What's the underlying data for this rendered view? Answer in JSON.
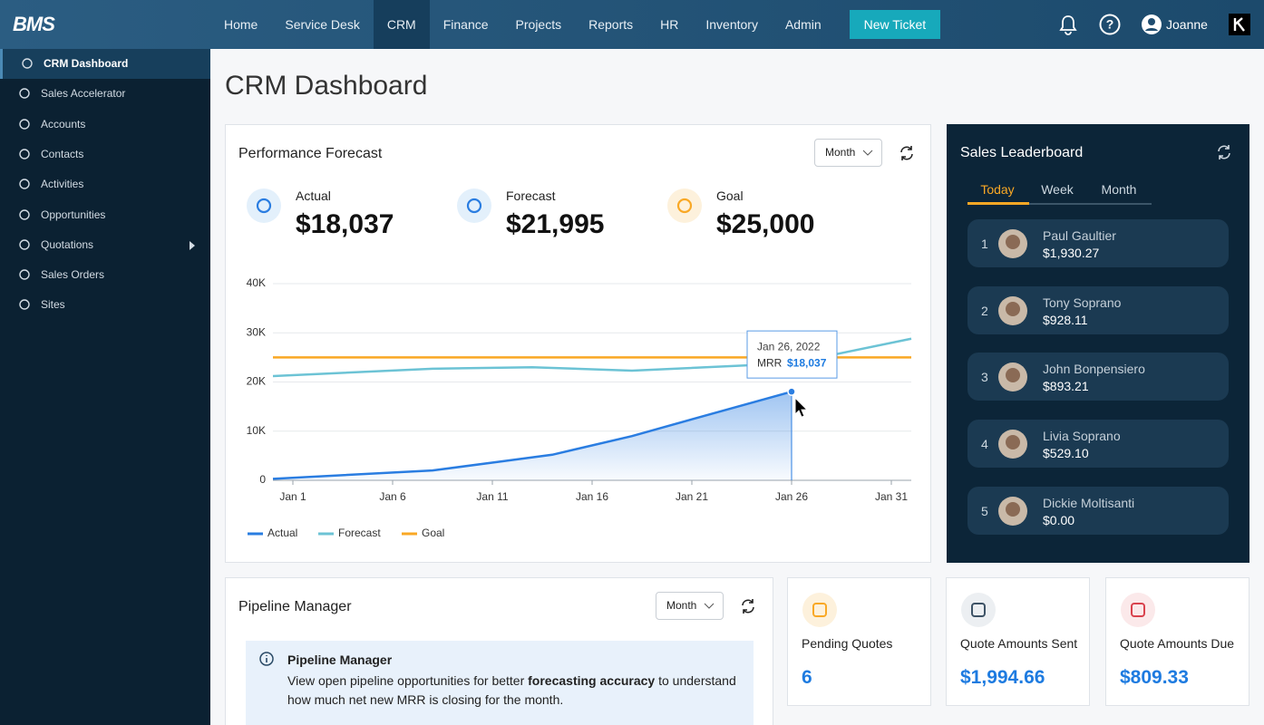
{
  "nav": {
    "logo": "BMS",
    "items": [
      "Home",
      "Service Desk",
      "CRM",
      "Finance",
      "Projects",
      "Reports",
      "HR",
      "Inventory",
      "Admin"
    ],
    "active": 2,
    "new_ticket": "New Ticket",
    "user": "Joanne"
  },
  "sidebar": {
    "active": 0,
    "items": [
      {
        "label": "CRM Dashboard"
      },
      {
        "label": "Sales Accelerator"
      },
      {
        "label": "Accounts"
      },
      {
        "label": "Contacts"
      },
      {
        "label": "Activities"
      },
      {
        "label": "Opportunities"
      },
      {
        "label": "Quotations",
        "submenu": true
      },
      {
        "label": "Sales Orders"
      },
      {
        "label": "Sites"
      }
    ]
  },
  "page_title": "CRM Dashboard",
  "performance": {
    "title": "Performance Forecast",
    "period": "Month",
    "kpis": [
      {
        "label": "Actual",
        "value": "$18,037"
      },
      {
        "label": "Forecast",
        "value": "$21,995"
      },
      {
        "label": "Goal",
        "value": "$25,000"
      }
    ],
    "chart_data": {
      "type": "line",
      "series": [
        {
          "name": "Actual",
          "color": "#2a7de1",
          "area": true,
          "x": [
            0,
            8,
            14,
            18,
            21,
            26
          ],
          "values": [
            300,
            2000,
            5200,
            9000,
            12400,
            18037
          ]
        },
        {
          "name": "Forecast",
          "color": "#6cc3d5",
          "x": [
            0,
            8,
            13,
            18,
            26,
            32
          ],
          "values": [
            21200,
            22700,
            23000,
            22300,
            23800,
            28800
          ]
        },
        {
          "name": "Goal",
          "color": "#f9a825",
          "x": [
            0,
            32
          ],
          "values": [
            25000,
            25000
          ]
        }
      ],
      "xlim": [
        0,
        32
      ],
      "xticks": [
        {
          "value": 1,
          "label": "Jan 1"
        },
        {
          "value": 6,
          "label": "Jan 6"
        },
        {
          "value": 11,
          "label": "Jan 11"
        },
        {
          "value": 16,
          "label": "Jan 16"
        },
        {
          "value": 21,
          "label": "Jan 21"
        },
        {
          "value": 26,
          "label": "Jan 26"
        },
        {
          "value": 31,
          "label": "Jan 31"
        }
      ],
      "ylim": [
        0,
        40000
      ],
      "yticks": [
        0,
        {
          "value": 10000,
          "label": "10K"
        },
        {
          "value": 20000,
          "label": "20K"
        },
        {
          "value": 30000,
          "label": "30K"
        },
        {
          "value": 40000,
          "label": "40K"
        }
      ],
      "grid": true,
      "tooltip": {
        "x": 26,
        "date": "Jan 26, 2022",
        "label": "MRR",
        "value": "$18,037"
      }
    }
  },
  "leaderboard": {
    "title": "Sales Leaderboard",
    "tabs": [
      "Today",
      "Week",
      "Month"
    ],
    "active_tab": 0,
    "entries": [
      {
        "rank": 1,
        "name": "Paul Gaultier",
        "amount": "$1,930.27"
      },
      {
        "rank": 2,
        "name": "Tony Soprano",
        "amount": "$928.11"
      },
      {
        "rank": 3,
        "name": "John Bonpensiero",
        "amount": "$893.21"
      },
      {
        "rank": 4,
        "name": "Livia Soprano",
        "amount": "$529.10"
      },
      {
        "rank": 5,
        "name": "Dickie Moltisanti",
        "amount": "$0.00"
      }
    ]
  },
  "pipeline": {
    "title": "Pipeline Manager",
    "period": "Month",
    "info_title": "Pipeline Manager",
    "info_text": [
      "View open pipeline opportunities for better ",
      "forecasting accuracy",
      " to understand how much net new MRR is closing for the month."
    ]
  },
  "stats": [
    {
      "label": "Pending Quotes",
      "value": "6"
    },
    {
      "label": "Quote Amounts Sent",
      "value": "$1,994.66"
    },
    {
      "label": "Quote Amounts Due",
      "value": "$809.33"
    }
  ]
}
